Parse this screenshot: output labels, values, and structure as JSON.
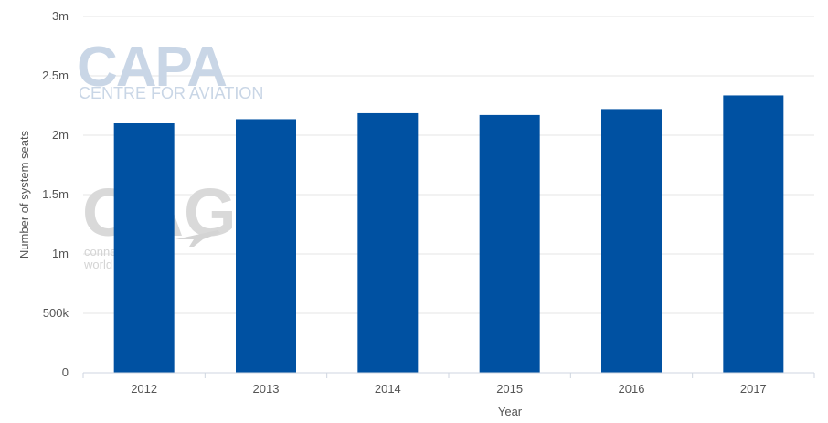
{
  "chart_data": {
    "type": "bar",
    "categories": [
      "2012",
      "2013",
      "2014",
      "2015",
      "2016",
      "2017"
    ],
    "values": [
      2100000,
      2135000,
      2185000,
      2170000,
      2220000,
      2335000
    ],
    "xlabel": "Year",
    "ylabel": "Number of system seats",
    "ylim": [
      0,
      3000000
    ],
    "yticks": [
      {
        "value": 0,
        "label": "0"
      },
      {
        "value": 500000,
        "label": "500k"
      },
      {
        "value": 1000000,
        "label": "1m"
      },
      {
        "value": 1500000,
        "label": "1.5m"
      },
      {
        "value": 2000000,
        "label": "2m"
      },
      {
        "value": 2500000,
        "label": "2.5m"
      },
      {
        "value": 3000000,
        "label": "3m"
      }
    ],
    "grid": true,
    "bar_color": "#0051a2"
  },
  "watermarks": {
    "capa_logo": "CAPA",
    "capa_subtitle": "CENTRE FOR AVIATION",
    "oag_logo": "OAG",
    "oag_line1": "connecting the",
    "oag_line2": "world of travel"
  }
}
